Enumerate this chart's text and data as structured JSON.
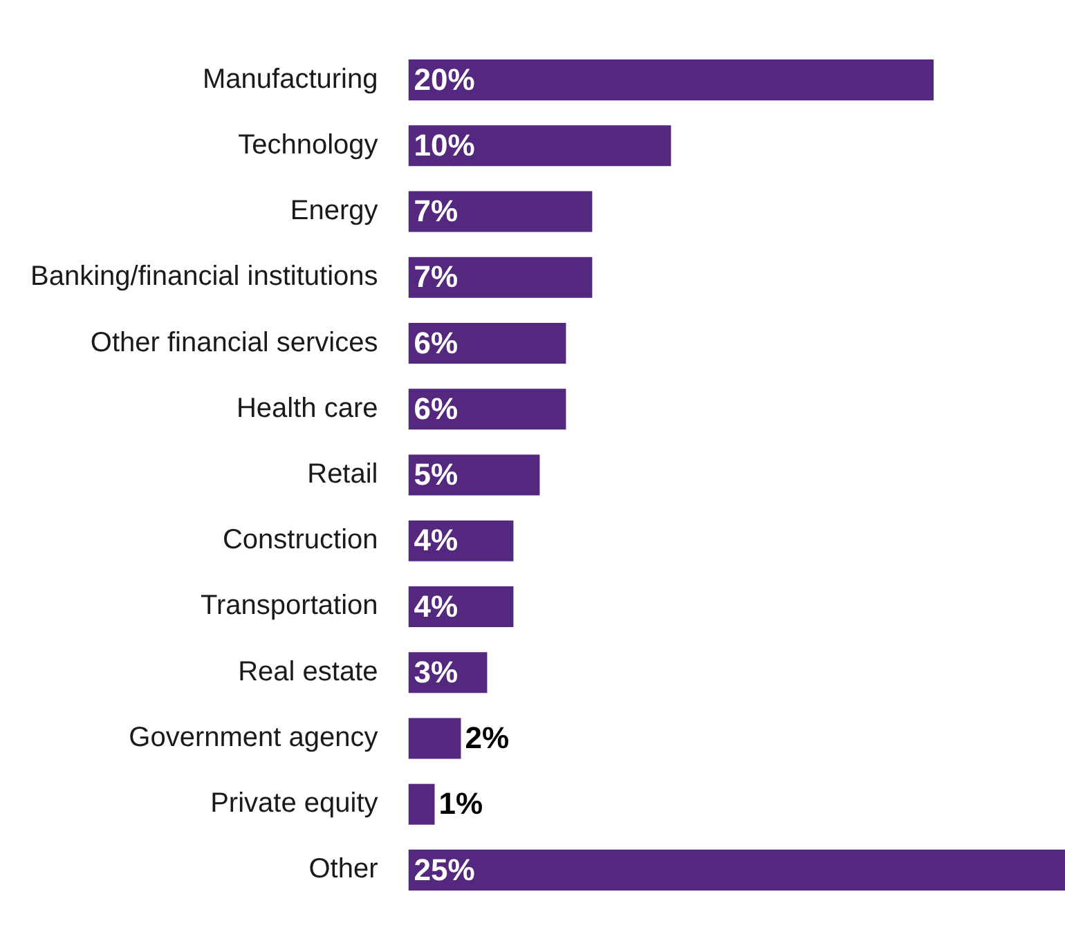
{
  "chart_data": {
    "type": "bar",
    "orientation": "horizontal",
    "categories": [
      "Manufacturing",
      "Technology",
      "Energy",
      "Banking/financial institutions",
      "Other financial services",
      "Health care",
      "Retail",
      "Construction",
      "Transportation",
      "Real estate",
      "Government agency",
      "Private equity",
      "Other"
    ],
    "values": [
      20,
      10,
      7,
      7,
      6,
      6,
      5,
      4,
      4,
      3,
      2,
      1,
      25
    ],
    "value_labels": [
      "20%",
      "10%",
      "7%",
      "7%",
      "6%",
      "6%",
      "5%",
      "4%",
      "4%",
      "3%",
      "2%",
      "1%",
      "25%"
    ],
    "color": "#55287f",
    "grid": false,
    "legend": false,
    "tick_labels": "y"
  }
}
